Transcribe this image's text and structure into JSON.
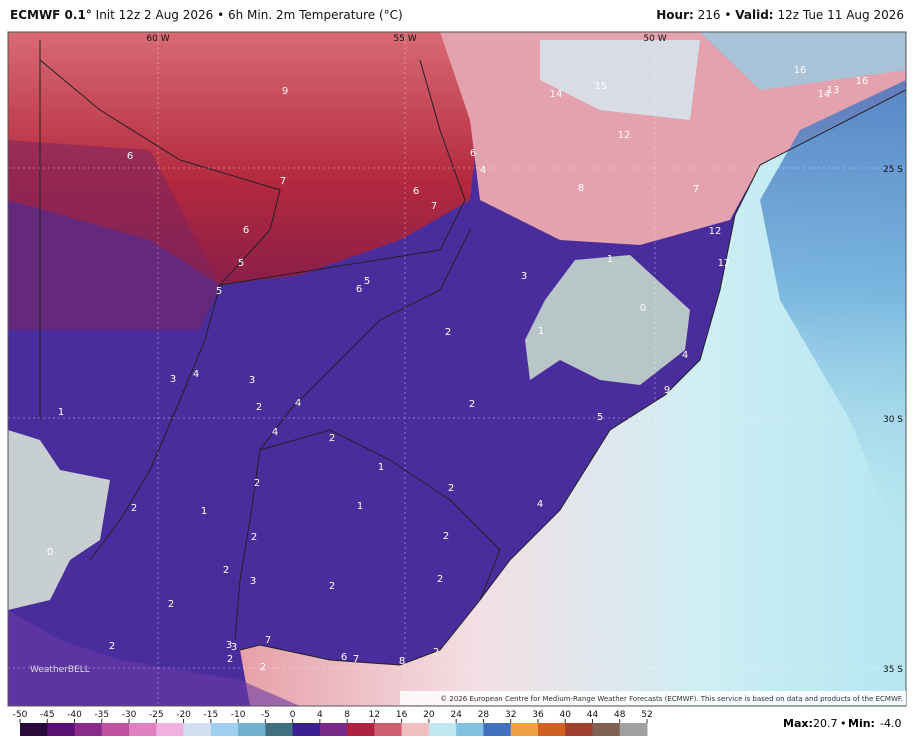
{
  "header": {
    "model": "ECMWF 0.1°",
    "init": "Init 12z 2 Aug 2026",
    "product": "6h Min. 2m Temperature (°C)",
    "hour_label": "Hour:",
    "hour": "216",
    "valid_label": "Valid:",
    "valid": "12z Tue 11 Aug 2026"
  },
  "map": {
    "lon_labels": [
      "60 W",
      "55 W",
      "50 W"
    ],
    "lat_labels": [
      "25 S",
      "30 S",
      "35 S"
    ],
    "value_labels": [
      6,
      9,
      7,
      6,
      5,
      5,
      5,
      6,
      6,
      7,
      6,
      4,
      14,
      15,
      12,
      8,
      7,
      16,
      16,
      14,
      13,
      12,
      12,
      1,
      3,
      0,
      1,
      2,
      4,
      5,
      3,
      4,
      3,
      2,
      4,
      4,
      2,
      1,
      2,
      2,
      1,
      4,
      1,
      2,
      1,
      2,
      2,
      2,
      0,
      2,
      3,
      2,
      2,
      2,
      2,
      3,
      3,
      2,
      7,
      2,
      6,
      7,
      8,
      2,
      9
    ],
    "watermark": "WeatherBELL",
    "copyright": "© 2026 European Centre for Medium-Range Weather Forecasts (ECMWF). This service is based on data and products of the ECMWF."
  },
  "colorbar": {
    "ticks": [
      -50,
      -45,
      -40,
      -35,
      -30,
      -25,
      -20,
      -15,
      -10,
      -5,
      0,
      4,
      8,
      12,
      16,
      20,
      24,
      28,
      32,
      36,
      40,
      44,
      48,
      52
    ]
  },
  "footer": {
    "max_label": "Max:",
    "max": 20.7,
    "min_label": "Min:",
    "min": -4.0
  }
}
